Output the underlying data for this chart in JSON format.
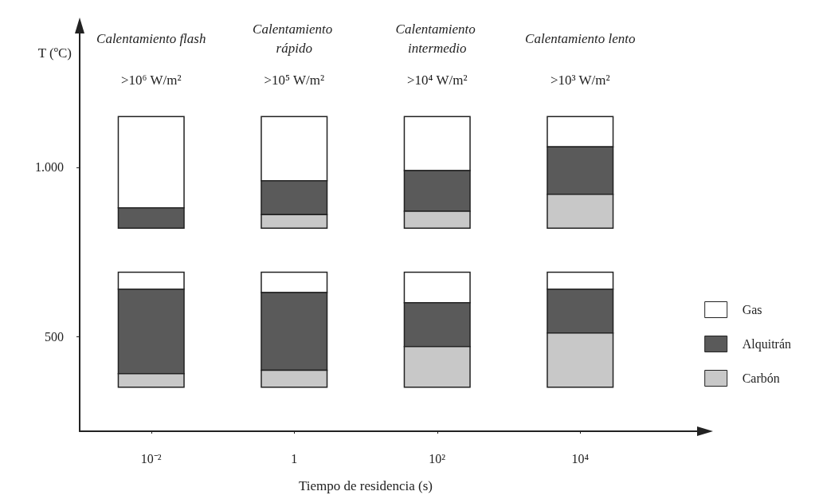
{
  "chart_data": {
    "type": "bar",
    "xlabel": "Tiempo de residencia (s)",
    "ylabel": "T (ºC)",
    "categories": [
      "10⁻²",
      "1",
      "10²",
      "10⁴"
    ],
    "ylim": [
      220,
      1400
    ],
    "yticks": [
      500,
      {
        "value": 1000,
        "label": "1.000"
      }
    ],
    "series": [
      {
        "name": "Gas",
        "color": "#ffffff",
        "base": [
          640,
          630,
          600,
          640
        ],
        "values": [
          50,
          60,
          90,
          50
        ]
      },
      {
        "name": "Alquitrán",
        "color": "#5a5a5a",
        "base": [
          390,
          400,
          470,
          510
        ],
        "values": [
          250,
          230,
          130,
          130
        ]
      },
      {
        "name": "Carbón",
        "color": "#c8c8c8",
        "base": [
          350,
          350,
          350,
          350
        ],
        "values": [
          40,
          50,
          120,
          160
        ]
      },
      {
        "color": "#ffffff",
        "base": [
          880,
          960,
          990,
          1060
        ],
        "values": [
          270,
          190,
          160,
          90
        ]
      },
      {
        "color": "#5a5a5a",
        "base": [
          820,
          860,
          870,
          920
        ],
        "values": [
          60,
          100,
          120,
          140
        ]
      },
      {
        "color": "#c8c8c8",
        "base": [
          null,
          820,
          820,
          820
        ],
        "values": [
          null,
          40,
          50,
          100
        ]
      }
    ],
    "annotations": [
      "Calentamiento flash",
      "Calentamiento rápido",
      "Calentamiento intermedio",
      "Calentamiento lento",
      ">10⁶ W/m²",
      ">10⁵ W/m²",
      ">10⁴ W/m²",
      ">10³ W/m²"
    ],
    "legend": "right",
    "grid": false
  }
}
